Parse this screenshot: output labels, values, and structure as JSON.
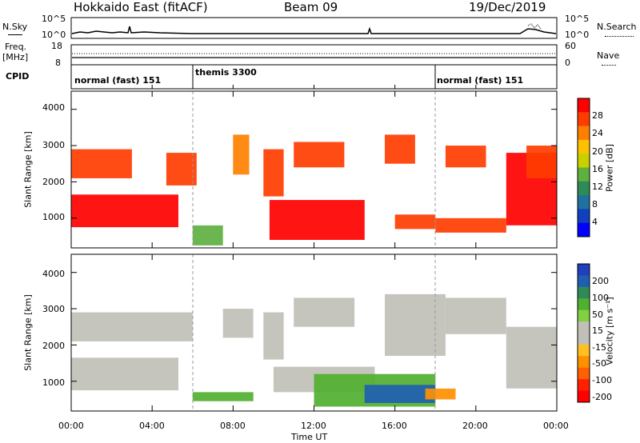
{
  "header": {
    "station": "Hokkaido East (fitACF)",
    "beam": "Beam 09",
    "date": "19/Dec/2019"
  },
  "panels": {
    "nsky_label": "N.Sky",
    "nsky_ticks": [
      "10^5",
      "10^0"
    ],
    "nsky_right_ticks": [
      "10^5",
      "10^0"
    ],
    "nsearch_label": "N.Search",
    "freq_label_line1": "Freq.",
    "freq_label_line2": "[MHz]",
    "freq_ticks": [
      "18",
      "8"
    ],
    "nave_ticks": [
      "60",
      "0"
    ],
    "nave_label": "Nave",
    "cpid_label": "CPID"
  },
  "cpid_modes": [
    {
      "label": "normal (fast) 151",
      "start_hour": 0,
      "end_hour": 6
    },
    {
      "label": "themis 3300",
      "start_hour": 6,
      "end_hour": 18
    },
    {
      "label": "normal (fast) 151",
      "start_hour": 18,
      "end_hour": 24
    }
  ],
  "x_axis": {
    "label": "Time UT",
    "ticks": [
      "00:00",
      "04:00",
      "08:00",
      "12:00",
      "16:00",
      "20:00",
      "00:00"
    ],
    "range_hours": [
      0,
      24
    ]
  },
  "power_panel": {
    "ylabel": "Slant Range [km]",
    "yticks": [
      "4000",
      "3000",
      "2000",
      "1000"
    ],
    "colorbar_label": "Power [dB]",
    "colorbar_ticks": [
      "28",
      "24",
      "20",
      "16",
      "12",
      "8",
      "4"
    ],
    "colorbar_colors": [
      "#ff0000",
      "#ff3c00",
      "#ff8000",
      "#ffc000",
      "#c8d000",
      "#60b040",
      "#2e8b57",
      "#2070a0",
      "#1040c0",
      "#0000ff"
    ]
  },
  "velocity_panel": {
    "ylabel": "Slant Range [km]",
    "yticks": [
      "4000",
      "3000",
      "2000",
      "1000"
    ],
    "colorbar_label": "Velocity [m s⁻¹]",
    "colorbar_ticks": [
      "200",
      "100",
      "50",
      "15",
      "-15",
      "-50",
      "-100",
      "-200"
    ],
    "colorbar_colors": [
      "#2040c0",
      "#1f5fb0",
      "#2e8b57",
      "#50b030",
      "#80d040",
      "#c0c0b8",
      "#c0c0b8",
      "#ffc020",
      "#ff9000",
      "#ff6000",
      "#ff2000",
      "#ff0000"
    ]
  },
  "chart_data": {
    "type": "heatmap",
    "title": "Hokkaido East (fitACF)",
    "xlabel": "Time UT",
    "ylabel": "Slant Range [km]",
    "xlim": [
      0,
      24
    ],
    "ylim": [
      180,
      4500
    ],
    "series": [
      {
        "name": "Power [dB]",
        "regions": [
          {
            "t": [
              0.0,
              5.3
            ],
            "r": [
              750,
              1650
            ],
            "value": 28
          },
          {
            "t": [
              0.0,
              3.0
            ],
            "r": [
              2100,
              2900
            ],
            "value": 26
          },
          {
            "t": [
              4.7,
              6.2
            ],
            "r": [
              1900,
              2800
            ],
            "value": 24
          },
          {
            "t": [
              6.0,
              7.5
            ],
            "r": [
              250,
              800
            ],
            "value": 12
          },
          {
            "t": [
              8.0,
              8.8
            ],
            "r": [
              2200,
              3300
            ],
            "value": 22
          },
          {
            "t": [
              9.5,
              10.5
            ],
            "r": [
              1600,
              2900
            ],
            "value": 24
          },
          {
            "t": [
              9.8,
              14.5
            ],
            "r": [
              400,
              1500
            ],
            "value": 28
          },
          {
            "t": [
              11.0,
              13.5
            ],
            "r": [
              2400,
              3100
            ],
            "value": 26
          },
          {
            "t": [
              15.5,
              17.0
            ],
            "r": [
              2500,
              3300
            ],
            "value": 26
          },
          {
            "t": [
              16.0,
              18.0
            ],
            "r": [
              700,
              1100
            ],
            "value": 26
          },
          {
            "t": [
              18.0,
              21.5
            ],
            "r": [
              600,
              1000
            ],
            "value": 24
          },
          {
            "t": [
              18.5,
              20.5
            ],
            "r": [
              2400,
              3000
            ],
            "value": 26
          },
          {
            "t": [
              21.5,
              24.0
            ],
            "r": [
              800,
              2800
            ],
            "value": 28
          },
          {
            "t": [
              22.5,
              24.0
            ],
            "r": [
              2100,
              3000
            ],
            "value": 24
          }
        ]
      },
      {
        "name": "Velocity [m s⁻¹]",
        "regions": [
          {
            "t": [
              0.0,
              5.3
            ],
            "r": [
              750,
              1650
            ],
            "value": 0
          },
          {
            "t": [
              0.0,
              6.0
            ],
            "r": [
              2100,
              2900
            ],
            "value": 0
          },
          {
            "t": [
              6.0,
              9.0
            ],
            "r": [
              450,
              700
            ],
            "value": 60
          },
          {
            "t": [
              7.5,
              9.0
            ],
            "r": [
              2200,
              3000
            ],
            "value": 0
          },
          {
            "t": [
              9.5,
              10.5
            ],
            "r": [
              1600,
              2900
            ],
            "value": 0
          },
          {
            "t": [
              10.0,
              15.0
            ],
            "r": [
              700,
              1400
            ],
            "value": 0
          },
          {
            "t": [
              12.0,
              18.0
            ],
            "r": [
              300,
              1200
            ],
            "value": 60
          },
          {
            "t": [
              14.5,
              18.0
            ],
            "r": [
              400,
              900
            ],
            "value": 120
          },
          {
            "t": [
              17.5,
              19.0
            ],
            "r": [
              500,
              800
            ],
            "value": -60
          },
          {
            "t": [
              11.0,
              14.0
            ],
            "r": [
              2500,
              3300
            ],
            "value": 0
          },
          {
            "t": [
              15.5,
              18.5
            ],
            "r": [
              1700,
              3400
            ],
            "value": 0
          },
          {
            "t": [
              18.5,
              21.5
            ],
            "r": [
              2300,
              3300
            ],
            "value": 0
          },
          {
            "t": [
              21.5,
              24.0
            ],
            "r": [
              800,
              2500
            ],
            "value": 0
          }
        ]
      }
    ]
  }
}
